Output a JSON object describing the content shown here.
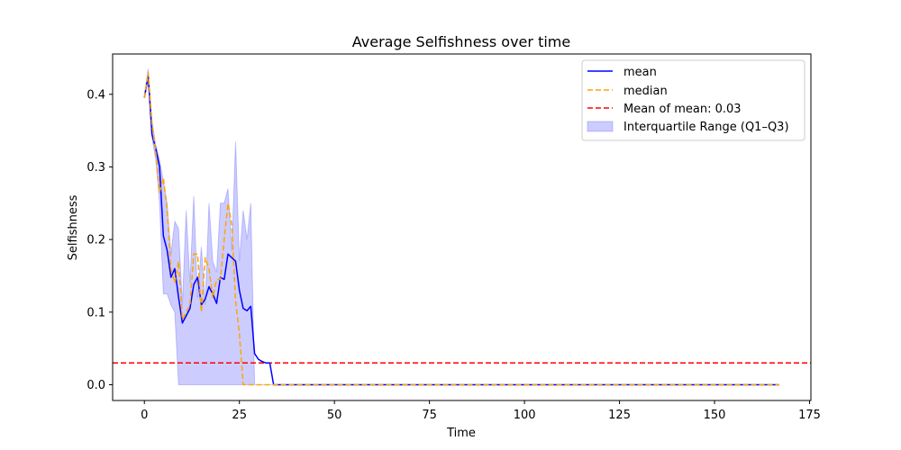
{
  "chart_data": {
    "type": "line",
    "title": "Average Selfishness over time",
    "xlabel": "Time",
    "ylabel": "Selfishness",
    "xlim": [
      -8.35,
      175.35
    ],
    "ylim": [
      -0.0217,
      0.4555
    ],
    "x_ticks": [
      0,
      25,
      50,
      75,
      100,
      125,
      150,
      175
    ],
    "y_ticks": [
      0.0,
      0.1,
      0.2,
      0.3,
      0.4
    ],
    "y_tick_labels": [
      "0.0",
      "0.1",
      "0.2",
      "0.3",
      "0.4"
    ],
    "grid": false,
    "legend_position": "top-right",
    "x_max_value": 167,
    "series": [
      {
        "name": "mean",
        "style": "solid",
        "color": "#0000ff",
        "points": [
          [
            0,
            0.395
          ],
          [
            1,
            0.425
          ],
          [
            2,
            0.345
          ],
          [
            3,
            0.325
          ],
          [
            4,
            0.3
          ],
          [
            5,
            0.205
          ],
          [
            6,
            0.185
          ],
          [
            7,
            0.148
          ],
          [
            8,
            0.16
          ],
          [
            9,
            0.12
          ],
          [
            10,
            0.085
          ],
          [
            11,
            0.095
          ],
          [
            12,
            0.105
          ],
          [
            13,
            0.138
          ],
          [
            14,
            0.148
          ],
          [
            15,
            0.11
          ],
          [
            16,
            0.118
          ],
          [
            17,
            0.135
          ],
          [
            18,
            0.125
          ],
          [
            19,
            0.112
          ],
          [
            20,
            0.148
          ],
          [
            21,
            0.145
          ],
          [
            22,
            0.18
          ],
          [
            23,
            0.175
          ],
          [
            24,
            0.17
          ],
          [
            25,
            0.13
          ],
          [
            26,
            0.105
          ],
          [
            27,
            0.102
          ],
          [
            28,
            0.108
          ],
          [
            29,
            0.043
          ],
          [
            30,
            0.035
          ],
          [
            31,
            0.032
          ],
          [
            32,
            0.03
          ],
          [
            33,
            0.03
          ],
          [
            34,
            0.0
          ],
          [
            167,
            0.0
          ]
        ]
      },
      {
        "name": "median",
        "style": "dashed",
        "color": "#ffa500",
        "points": [
          [
            0,
            0.395
          ],
          [
            1,
            0.43
          ],
          [
            2,
            0.36
          ],
          [
            3,
            0.32
          ],
          [
            4,
            0.265
          ],
          [
            5,
            0.285
          ],
          [
            6,
            0.24
          ],
          [
            7,
            0.16
          ],
          [
            8,
            0.14
          ],
          [
            9,
            0.17
          ],
          [
            10,
            0.09
          ],
          [
            11,
            0.1
          ],
          [
            12,
            0.11
          ],
          [
            13,
            0.18
          ],
          [
            14,
            0.18
          ],
          [
            15,
            0.1
          ],
          [
            16,
            0.175
          ],
          [
            17,
            0.16
          ],
          [
            18,
            0.12
          ],
          [
            19,
            0.145
          ],
          [
            20,
            0.145
          ],
          [
            21,
            0.2
          ],
          [
            22,
            0.25
          ],
          [
            23,
            0.22
          ],
          [
            24,
            0.115
          ],
          [
            25,
            0.07
          ],
          [
            26,
            0.0
          ],
          [
            167,
            0.0
          ]
        ]
      },
      {
        "name": "Mean of mean: 0.03",
        "style": "dashed-hline",
        "color": "#ff0000",
        "y": 0.03
      }
    ],
    "band": {
      "name": "Interquartile Range (Q1–Q3)",
      "color": "#0000ff",
      "lower": [
        [
          0,
          0.395
        ],
        [
          1,
          0.42
        ],
        [
          2,
          0.34
        ],
        [
          3,
          0.31
        ],
        [
          4,
          0.25
        ],
        [
          5,
          0.125
        ],
        [
          6,
          0.125
        ],
        [
          7,
          0.11
        ],
        [
          8,
          0.1
        ],
        [
          9,
          0.0
        ],
        [
          167,
          0.0
        ]
      ],
      "upper": [
        [
          0,
          0.4
        ],
        [
          1,
          0.435
        ],
        [
          2,
          0.365
        ],
        [
          3,
          0.33
        ],
        [
          4,
          0.31
        ],
        [
          5,
          0.28
        ],
        [
          6,
          0.25
        ],
        [
          7,
          0.18
        ],
        [
          8,
          0.225
        ],
        [
          9,
          0.215
        ],
        [
          10,
          0.11
        ],
        [
          11,
          0.24
        ],
        [
          12,
          0.14
        ],
        [
          13,
          0.26
        ],
        [
          14,
          0.12
        ],
        [
          15,
          0.19
        ],
        [
          16,
          0.11
        ],
        [
          17,
          0.25
        ],
        [
          18,
          0.17
        ],
        [
          19,
          0.155
        ],
        [
          20,
          0.25
        ],
        [
          21,
          0.25
        ],
        [
          22,
          0.27
        ],
        [
          23,
          0.185
        ],
        [
          24,
          0.335
        ],
        [
          25,
          0.17
        ],
        [
          26,
          0.24
        ],
        [
          27,
          0.2
        ],
        [
          28,
          0.25
        ],
        [
          29,
          0.0
        ],
        [
          167,
          0.0
        ]
      ]
    }
  }
}
